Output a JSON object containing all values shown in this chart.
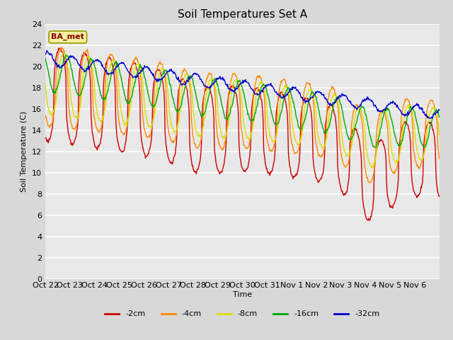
{
  "title": "Soil Temperatures Set A",
  "ylabel": "Soil Temperature (C)",
  "xlabel": "Time",
  "annotation": "BA_met",
  "ylim": [
    0,
    24
  ],
  "yticks": [
    0,
    2,
    4,
    6,
    8,
    10,
    12,
    14,
    16,
    18,
    20,
    22,
    24
  ],
  "xtick_labels": [
    "Oct 22",
    "Oct 23",
    "Oct 24",
    "Oct 25",
    "Oct 26",
    "Oct 27",
    "Oct 28",
    "Oct 29",
    "Oct 30",
    "Oct 31",
    "Nov 1",
    "Nov 2",
    "Nov 3",
    "Nov 4",
    "Nov 5",
    "Nov 6"
  ],
  "legend_labels": [
    "-2cm",
    "-4cm",
    "-8cm",
    "-16cm",
    "-32cm"
  ],
  "line_colors": [
    "#cc0000",
    "#ff8800",
    "#dddd00",
    "#00aa00",
    "#0000cc"
  ],
  "fig_bg_color": "#d8d8d8",
  "plot_bg_color": "#e8e8e8",
  "n_days": 16,
  "samples_per_day": 48
}
